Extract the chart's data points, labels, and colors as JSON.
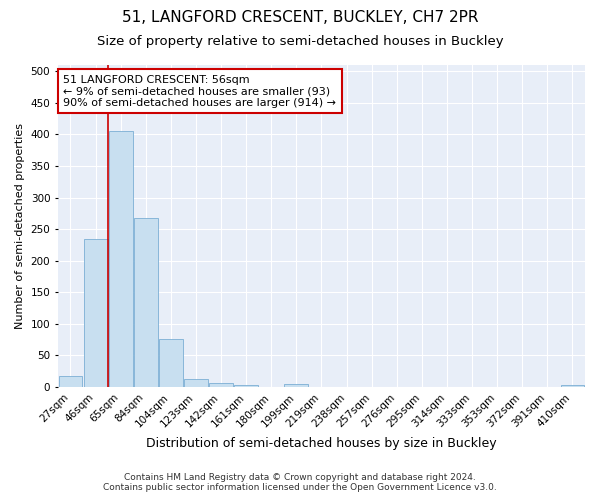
{
  "title1": "51, LANGFORD CRESCENT, BUCKLEY, CH7 2PR",
  "title2": "Size of property relative to semi-detached houses in Buckley",
  "xlabel": "Distribution of semi-detached houses by size in Buckley",
  "ylabel": "Number of semi-detached properties",
  "categories": [
    "27sqm",
    "46sqm",
    "65sqm",
    "84sqm",
    "104sqm",
    "123sqm",
    "142sqm",
    "161sqm",
    "180sqm",
    "199sqm",
    "219sqm",
    "238sqm",
    "257sqm",
    "276sqm",
    "295sqm",
    "314sqm",
    "333sqm",
    "353sqm",
    "372sqm",
    "391sqm",
    "410sqm"
  ],
  "values": [
    18,
    235,
    405,
    268,
    76,
    12,
    7,
    3,
    0,
    5,
    0,
    0,
    0,
    0,
    0,
    0,
    0,
    0,
    0,
    0,
    3
  ],
  "bar_color": "#c8dff0",
  "bar_edge_color": "#7bafd4",
  "vline_x_index": 1.5,
  "vline_color": "#cc0000",
  "annotation_text": "51 LANGFORD CRESCENT: 56sqm\n← 9% of semi-detached houses are smaller (93)\n90% of semi-detached houses are larger (914) →",
  "annotation_box_facecolor": "#ffffff",
  "annotation_box_edgecolor": "#cc0000",
  "ylim": [
    0,
    510
  ],
  "yticks": [
    0,
    50,
    100,
    150,
    200,
    250,
    300,
    350,
    400,
    450,
    500
  ],
  "plot_bg_color": "#e8eef8",
  "footer1": "Contains HM Land Registry data © Crown copyright and database right 2024.",
  "footer2": "Contains public sector information licensed under the Open Government Licence v3.0.",
  "title1_fontsize": 11,
  "title2_fontsize": 9.5,
  "xlabel_fontsize": 9,
  "ylabel_fontsize": 8,
  "tick_fontsize": 7.5,
  "annotation_fontsize": 8,
  "footer_fontsize": 6.5
}
